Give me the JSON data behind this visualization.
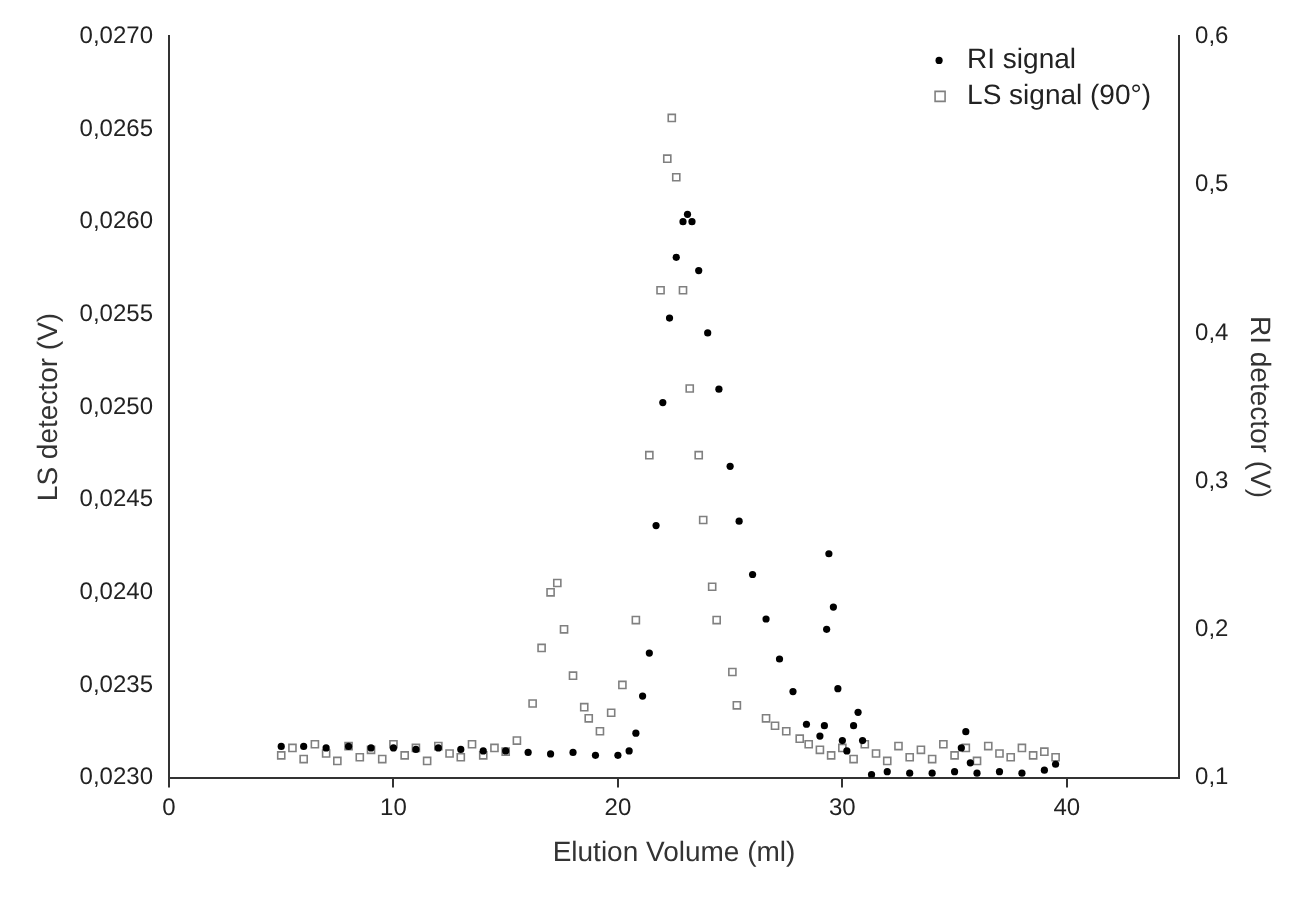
{
  "chart_data": {
    "type": "scatter",
    "xlabel": "Elution Volume (ml)",
    "ylabel": "LS detector (V)",
    "y2label": "RI detector (V)",
    "xlim": [
      0,
      45
    ],
    "xticks": [
      0,
      10,
      20,
      30,
      40
    ],
    "ylim": [
      0.023,
      0.027
    ],
    "yticks": [
      {
        "value": 0.023,
        "label": "0,0230"
      },
      {
        "value": 0.0235,
        "label": "0,0235"
      },
      {
        "value": 0.024,
        "label": "0,0240"
      },
      {
        "value": 0.0245,
        "label": "0,0245"
      },
      {
        "value": 0.025,
        "label": "0,0250"
      },
      {
        "value": 0.0255,
        "label": "0,0255"
      },
      {
        "value": 0.026,
        "label": "0,0260"
      },
      {
        "value": 0.0265,
        "label": "0,0265"
      },
      {
        "value": 0.027,
        "label": "0,0270"
      }
    ],
    "y2lim": [
      0.1,
      0.6
    ],
    "y2ticks": [
      {
        "value": 0.1,
        "label": "0,1"
      },
      {
        "value": 0.2,
        "label": "0,2"
      },
      {
        "value": 0.3,
        "label": "0,3"
      },
      {
        "value": 0.4,
        "label": "0,4"
      },
      {
        "value": 0.5,
        "label": "0,5"
      },
      {
        "value": 0.6,
        "label": "0,6"
      }
    ],
    "grid": false,
    "legend": "top right",
    "series": [
      {
        "name": "RI signal",
        "color": "#000000",
        "marker": "circle",
        "axis": "y2",
        "x": [
          5,
          6,
          7,
          8,
          9,
          10,
          11,
          12,
          13,
          14,
          15,
          16,
          17,
          18,
          19,
          20,
          20.5,
          20.8,
          21.1,
          21.4,
          21.7,
          22.0,
          22.3,
          22.6,
          22.9,
          23.1,
          23.3,
          23.6,
          24.0,
          24.5,
          25.0,
          25.4,
          26.0,
          26.6,
          27.2,
          27.8,
          28.4,
          29.0,
          29.2,
          29.3,
          29.4,
          29.6,
          29.8,
          30.0,
          30.2,
          30.5,
          30.7,
          30.9,
          31.3,
          32,
          33,
          34,
          35,
          35.3,
          35.5,
          35.7,
          36,
          37,
          38,
          39,
          39.5
        ],
        "values": [
          0.121,
          0.121,
          0.12,
          0.121,
          0.12,
          0.12,
          0.119,
          0.12,
          0.119,
          0.118,
          0.118,
          0.117,
          0.116,
          0.117,
          0.115,
          0.115,
          0.118,
          0.13,
          0.155,
          0.184,
          0.27,
          0.353,
          0.41,
          0.451,
          0.475,
          0.48,
          0.475,
          0.442,
          0.4,
          0.362,
          0.31,
          0.273,
          0.237,
          0.207,
          0.18,
          0.158,
          0.136,
          0.128,
          0.135,
          0.2,
          0.251,
          0.215,
          0.16,
          0.125,
          0.118,
          0.135,
          0.144,
          0.125,
          0.102,
          0.104,
          0.103,
          0.103,
          0.104,
          0.12,
          0.131,
          0.11,
          0.103,
          0.104,
          0.103,
          0.105,
          0.109
        ]
      },
      {
        "name": "LS signal (90°)",
        "color": "#808080",
        "marker": "square",
        "x": [
          5,
          5.5,
          6,
          6.5,
          7,
          7.5,
          8,
          8.5,
          9,
          9.5,
          10,
          10.5,
          11,
          11.5,
          12,
          12.5,
          13,
          13.5,
          14,
          14.5,
          15,
          15.5,
          16.2,
          16.6,
          17.0,
          17.3,
          17.6,
          18.0,
          18.5,
          18.7,
          19.2,
          19.7,
          20.2,
          20.8,
          21.4,
          21.9,
          22.2,
          22.4,
          22.6,
          22.9,
          23.2,
          23.6,
          23.8,
          24.2,
          24.4,
          25.1,
          25.3,
          26.6,
          27,
          27.5,
          28.1,
          28.5,
          29,
          29.5,
          30,
          30.5,
          31,
          31.5,
          32,
          32.5,
          33,
          33.5,
          34,
          34.5,
          35,
          35.5,
          36,
          36.5,
          37,
          37.5,
          38,
          38.5,
          39,
          39.5
        ],
        "values": [
          0.02312,
          0.02316,
          0.0231,
          0.02318,
          0.02313,
          0.02309,
          0.02317,
          0.02311,
          0.02315,
          0.0231,
          0.02318,
          0.02312,
          0.02316,
          0.02309,
          0.02317,
          0.02313,
          0.02311,
          0.02318,
          0.02312,
          0.02316,
          0.02314,
          0.0232,
          0.0234,
          0.0237,
          0.024,
          0.02405,
          0.0238,
          0.02355,
          0.02338,
          0.02332,
          0.02325,
          0.02335,
          0.0235,
          0.02385,
          0.02474,
          0.02563,
          0.02634,
          0.02656,
          0.02624,
          0.02563,
          0.0251,
          0.02474,
          0.02439,
          0.02403,
          0.02385,
          0.02357,
          0.02339,
          0.02332,
          0.02328,
          0.02325,
          0.02321,
          0.02318,
          0.02315,
          0.02312,
          0.02316,
          0.0231,
          0.02318,
          0.02313,
          0.02309,
          0.02317,
          0.02311,
          0.02315,
          0.0231,
          0.02318,
          0.02312,
          0.02316,
          0.02309,
          0.02317,
          0.02313,
          0.02311,
          0.02316,
          0.02312,
          0.02314,
          0.02311
        ]
      }
    ]
  }
}
